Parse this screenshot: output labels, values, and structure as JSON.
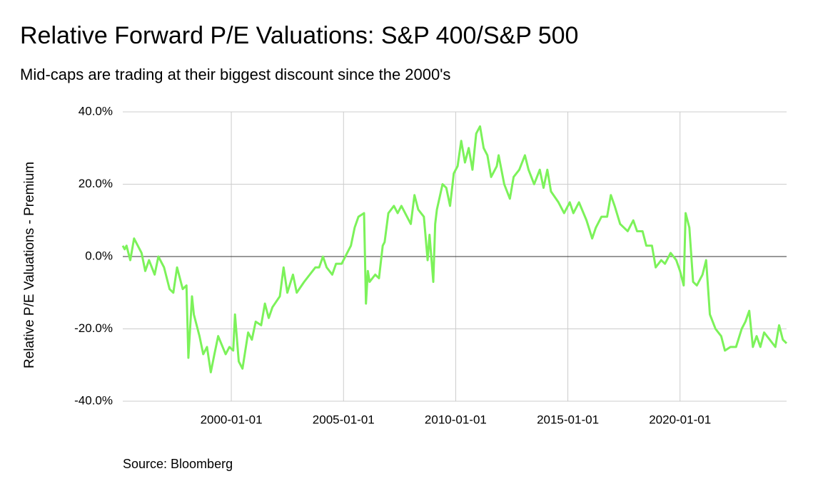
{
  "chart_data": {
    "type": "line",
    "title": "Relative Forward P/E Valuations: S&P 400/S&P 500",
    "subtitle": "Mid-caps are trading at their biggest discount since  the 2000's",
    "y_label": "Relative P/E Valuations - Premium",
    "source": "Source: Bloomberg",
    "xlim": [
      "1995-03-01",
      "2024-10-01"
    ],
    "xticks": [
      "2000-01-01",
      "2005-01-01",
      "2010-01-01",
      "2015-01-01",
      "2020-01-01"
    ],
    "ylim": [
      -40,
      40
    ],
    "yticks": [
      {
        "value": -40,
        "label": "-40.0%"
      },
      {
        "value": -20,
        "label": "-20.0%"
      },
      {
        "value": 0,
        "label": "0.0%"
      },
      {
        "value": 20,
        "label": "20.0%"
      },
      {
        "value": 40,
        "label": "40.0%"
      }
    ],
    "grid": true,
    "x": [
      "1995-03-01",
      "1995-04-01",
      "1995-05-01",
      "1995-07-01",
      "1995-09-01",
      "1995-12-01",
      "1996-01-01",
      "1996-03-01",
      "1996-05-01",
      "1996-08-01",
      "1996-10-01",
      "1997-01-01",
      "1997-04-01",
      "1997-06-01",
      "1997-08-01",
      "1997-11-01",
      "1998-01-01",
      "1998-02-01",
      "1998-04-01",
      "1998-05-01",
      "1998-08-01",
      "1998-10-01",
      "1998-12-01",
      "1999-02-01",
      "1999-04-01",
      "1999-06-01",
      "1999-10-01",
      "1999-12-01",
      "2000-02-01",
      "2000-03-01",
      "2000-05-01",
      "2000-07-01",
      "2000-10-01",
      "2000-12-01",
      "2001-02-01",
      "2001-05-01",
      "2001-07-01",
      "2001-09-01",
      "2001-11-01",
      "2002-03-01",
      "2002-05-01",
      "2002-07-01",
      "2002-10-01",
      "2002-12-01",
      "2003-04-01",
      "2003-07-01",
      "2003-10-01",
      "2003-12-01",
      "2004-02-01",
      "2004-04-01",
      "2004-07-01",
      "2004-09-01",
      "2004-12-01",
      "2005-03-01",
      "2005-05-01",
      "2005-07-01",
      "2005-09-01",
      "2005-12-01",
      "2006-01-01",
      "2006-02-01",
      "2006-03-01",
      "2006-06-01",
      "2006-08-01",
      "2006-10-01",
      "2006-11-01",
      "2007-01-01",
      "2007-04-01",
      "2007-06-01",
      "2007-08-01",
      "2007-10-01",
      "2008-01-01",
      "2008-03-01",
      "2008-05-01",
      "2008-08-01",
      "2008-10-01",
      "2008-11-01",
      "2009-01-01",
      "2009-02-01",
      "2009-03-01",
      "2009-06-01",
      "2009-08-01",
      "2009-10-01",
      "2009-12-01",
      "2010-02-01",
      "2010-04-01",
      "2010-06-01",
      "2010-08-01",
      "2010-10-01",
      "2010-12-01",
      "2011-02-01",
      "2011-04-01",
      "2011-06-01",
      "2011-08-01",
      "2011-11-01",
      "2011-12-01",
      "2012-03-01",
      "2012-06-01",
      "2012-08-01",
      "2012-11-01",
      "2013-02-01",
      "2013-04-01",
      "2013-07-01",
      "2013-10-01",
      "2013-12-01",
      "2014-02-01",
      "2014-04-01",
      "2014-08-01",
      "2014-11-01",
      "2015-02-01",
      "2015-04-01",
      "2015-07-01",
      "2015-11-01",
      "2016-02-01",
      "2016-04-01",
      "2016-07-01",
      "2016-10-01",
      "2016-12-01",
      "2017-02-01",
      "2017-05-01",
      "2017-09-01",
      "2017-12-01",
      "2018-02-01",
      "2018-05-01",
      "2018-07-01",
      "2018-10-01",
      "2018-12-01",
      "2019-03-01",
      "2019-05-01",
      "2019-08-01",
      "2019-11-01",
      "2020-01-01",
      "2020-03-01",
      "2020-04-01",
      "2020-06-01",
      "2020-08-01",
      "2020-10-01",
      "2021-01-01",
      "2021-03-01",
      "2021-05-01",
      "2021-08-01",
      "2021-11-01",
      "2022-01-01",
      "2022-04-01",
      "2022-07-01",
      "2022-10-01",
      "2022-12-01",
      "2023-02-01",
      "2023-04-01",
      "2023-06-01",
      "2023-08-01",
      "2023-10-01",
      "2024-01-01",
      "2024-04-01",
      "2024-06-01",
      "2024-08-01",
      "2024-10-01"
    ],
    "series": [
      {
        "name": "Relative Forward P/E",
        "color": "#7cf25a",
        "values": [
          3,
          2,
          3,
          -1,
          5,
          2,
          1,
          -4,
          -1,
          -5,
          0,
          -3,
          -9,
          -10,
          -3,
          -9,
          -8,
          -28,
          -11,
          -16,
          -22,
          -27,
          -25,
          -32,
          -27,
          -22,
          -27,
          -25,
          -26,
          -16,
          -29,
          -31,
          -21,
          -23,
          -18,
          -19,
          -13,
          -17,
          -14,
          -11,
          -3,
          -10,
          -5,
          -10,
          -7,
          -5,
          -3,
          -3,
          0,
          -3,
          -5,
          -2,
          -2,
          1,
          3,
          8,
          11,
          12,
          -13,
          -4,
          -7,
          -5,
          -6,
          3,
          4,
          12,
          14,
          12,
          14,
          12,
          9,
          17,
          13,
          11,
          -1,
          6,
          -7,
          9,
          13,
          20,
          19,
          14,
          23,
          25,
          32,
          26,
          30,
          24,
          34,
          36,
          30,
          28,
          22,
          25,
          28,
          20,
          16,
          22,
          24,
          28,
          24,
          20,
          24,
          19,
          24,
          18,
          15,
          12,
          15,
          12,
          15,
          10,
          5,
          8,
          11,
          11,
          17,
          14,
          9,
          7,
          10,
          7,
          7,
          3,
          3,
          -3,
          -1,
          -2,
          1,
          -1,
          -4,
          -8,
          12,
          8,
          -7,
          -8,
          -5,
          -1,
          -16,
          -20,
          -22,
          -26,
          -25,
          -25,
          -20,
          -18,
          -15,
          -25,
          -22,
          -25,
          -21,
          -23,
          -25,
          -19,
          -23,
          -24
        ]
      }
    ]
  }
}
